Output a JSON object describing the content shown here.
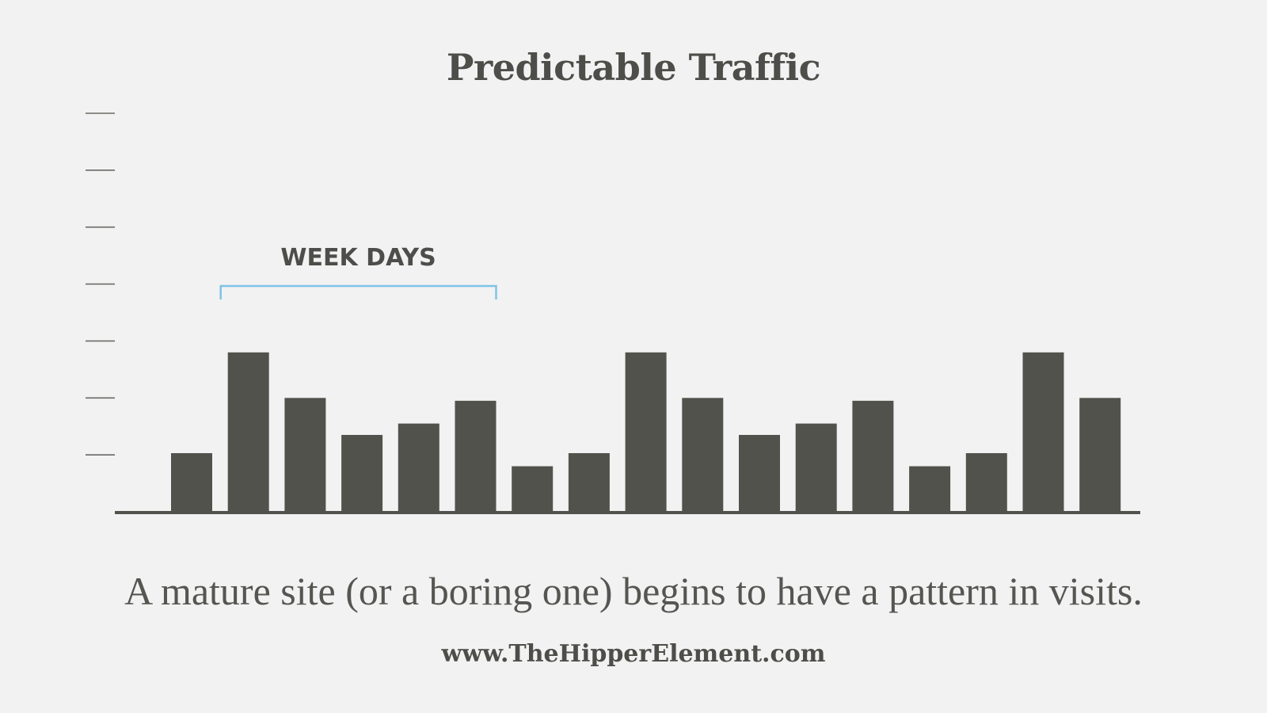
{
  "chart_data": {
    "type": "bar",
    "title": "Predictable Traffic",
    "values": [
      1.03,
      2.8,
      2.0,
      1.35,
      1.55,
      1.95,
      0.8,
      1.03,
      2.8,
      2.0,
      1.35,
      1.55,
      1.95,
      0.8,
      1.03,
      2.8,
      2.0
    ],
    "ylim": [
      0,
      7
    ],
    "yticks": [
      1,
      2,
      3,
      4,
      5,
      6,
      7
    ],
    "bar_color": "#52524d",
    "annotation": {
      "label": "WEEK DAYS",
      "start_index": 1,
      "end_index": 5,
      "color": "#7ec3e6"
    }
  },
  "caption": "A mature site (or a boring one) begins to have a pattern in visits.",
  "website": "www.TheHipperElement.com"
}
